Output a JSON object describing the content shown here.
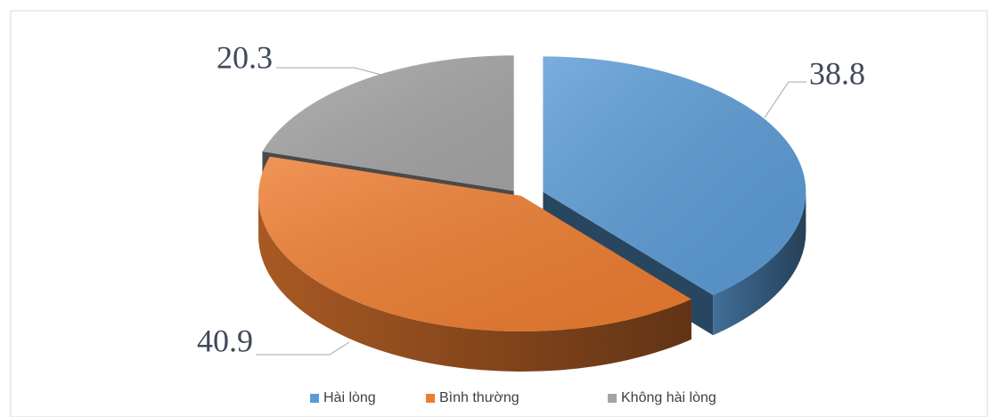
{
  "chart_data": {
    "type": "pie",
    "categories": [
      "Hài lòng",
      "Bình thường",
      "Không hài lòng"
    ],
    "values": [
      38.8,
      40.9,
      20.3
    ],
    "colors": [
      "#5b9bd5",
      "#ed7d31",
      "#a5a5a5"
    ],
    "legend": "bottom"
  }
}
